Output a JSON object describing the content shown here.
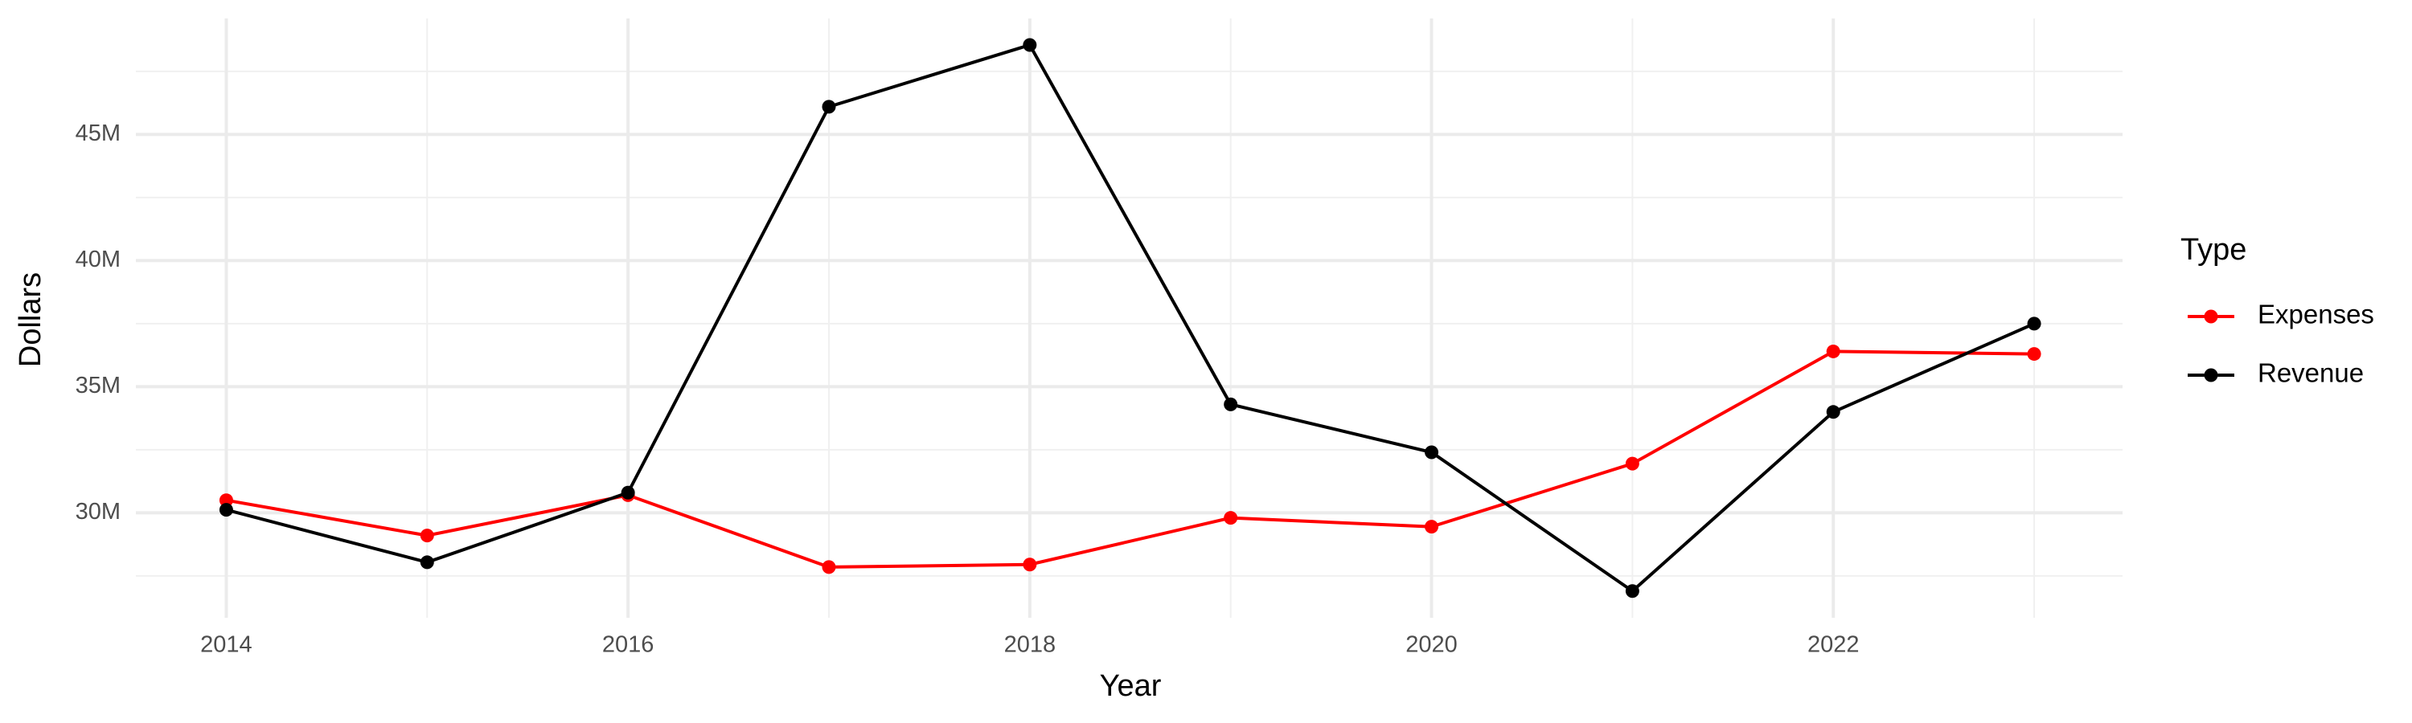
{
  "chart_data": {
    "type": "line",
    "x_label": "Year",
    "y_label": "Dollars",
    "legend_title": "Type",
    "x": [
      2014,
      2015,
      2016,
      2017,
      2018,
      2019,
      2020,
      2021,
      2022,
      2023
    ],
    "series": [
      {
        "name": "Expenses",
        "color": "#ff0000",
        "values": [
          30500000,
          29100000,
          30700000,
          27850000,
          27950000,
          29800000,
          29450000,
          31950000,
          36400000,
          36300000
        ]
      },
      {
        "name": "Revenue",
        "color": "#000000",
        "values": [
          30120000,
          28040000,
          30800000,
          46100000,
          48550000,
          34300000,
          32400000,
          26900000,
          34000000,
          37500000
        ]
      }
    ],
    "xlim": [
      2013.55,
      2023.44
    ],
    "xticks": [
      2014,
      2016,
      2018,
      2020,
      2022
    ],
    "ylim": [
      25840000,
      49600000
    ],
    "yticks": [
      {
        "value": 30000000,
        "label": "30M"
      },
      {
        "value": 35000000,
        "label": "35M"
      },
      {
        "value": 40000000,
        "label": "40M"
      },
      {
        "value": 45000000,
        "label": "45M"
      }
    ],
    "grid": true,
    "legend": "right"
  }
}
